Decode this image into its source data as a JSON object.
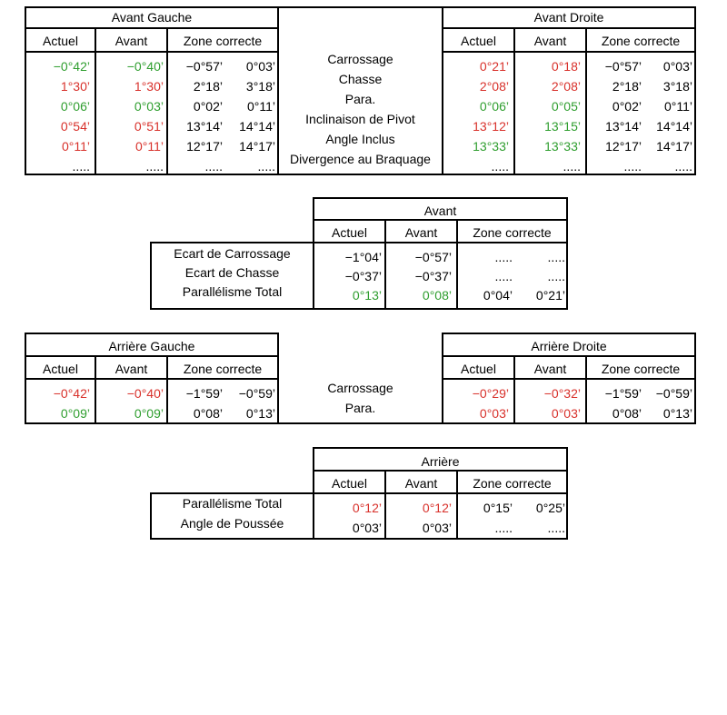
{
  "colors": {
    "out_of_range": "#d8312b",
    "in_range": "#2f9e2f"
  },
  "front": {
    "left_title": "Avant Gauche",
    "right_title": "Avant Droite",
    "col_headers": [
      "Actuel",
      "Avant",
      "Zone correcte"
    ],
    "labels": [
      "Carrossage",
      "Chasse",
      "Para.",
      "Inclinaison de Pivot",
      "Angle Inclus",
      "Divergence au Braquage"
    ],
    "left_rows": [
      {
        "actuel": "−0°42’",
        "avant": "−0°40’",
        "min": "−0°57’",
        "max": "0°03’",
        "c_act": "green",
        "c_av": "green"
      },
      {
        "actuel": "1°30’",
        "avant": "1°30’",
        "min": "2°18’",
        "max": "3°18’",
        "c_act": "red",
        "c_av": "red"
      },
      {
        "actuel": "0°06’",
        "avant": "0°03’",
        "min": "0°02’",
        "max": "0°11’",
        "c_act": "green",
        "c_av": "green"
      },
      {
        "actuel": "0°54’",
        "avant": "0°51’",
        "min": "13°14’",
        "max": "14°14’",
        "c_act": "red",
        "c_av": "red"
      },
      {
        "actuel": "0°11’",
        "avant": "0°11’",
        "min": "12°17’",
        "max": "14°17’",
        "c_act": "red",
        "c_av": "red"
      },
      {
        "actuel": ".....",
        "avant": ".....",
        "min": ".....",
        "max": ".....",
        "c_act": "blk",
        "c_av": "blk"
      }
    ],
    "right_rows": [
      {
        "actuel": "0°21’",
        "avant": "0°18’",
        "min": "−0°57’",
        "max": "0°03’",
        "c_act": "red",
        "c_av": "red"
      },
      {
        "actuel": "2°08’",
        "avant": "2°08’",
        "min": "2°18’",
        "max": "3°18’",
        "c_act": "red",
        "c_av": "red"
      },
      {
        "actuel": "0°06’",
        "avant": "0°05’",
        "min": "0°02’",
        "max": "0°11’",
        "c_act": "green",
        "c_av": "green"
      },
      {
        "actuel": "13°12’",
        "avant": "13°15’",
        "min": "13°14’",
        "max": "14°14’",
        "c_act": "red",
        "c_av": "green"
      },
      {
        "actuel": "13°33’",
        "avant": "13°33’",
        "min": "12°17’",
        "max": "14°17’",
        "c_act": "green",
        "c_av": "green"
      },
      {
        "actuel": ".....",
        "avant": ".....",
        "min": ".....",
        "max": ".....",
        "c_act": "blk",
        "c_av": "blk"
      }
    ]
  },
  "front_axle": {
    "title": "Avant",
    "col_headers": [
      "Actuel",
      "Avant",
      "Zone correcte"
    ],
    "labels": [
      "Ecart de Carrossage",
      "Ecart de Chasse",
      "Parallélisme Total"
    ],
    "rows": [
      {
        "actuel": "−1°04’",
        "avant": "−0°57’",
        "min": ".....",
        "max": ".....",
        "c_act": "blk",
        "c_av": "blk"
      },
      {
        "actuel": "−0°37’",
        "avant": "−0°37’",
        "min": ".....",
        "max": ".....",
        "c_act": "blk",
        "c_av": "blk"
      },
      {
        "actuel": "0°13’",
        "avant": "0°08’",
        "min": "0°04’",
        "max": "0°21’",
        "c_act": "green",
        "c_av": "green"
      }
    ]
  },
  "rear": {
    "left_title": "Arrière Gauche",
    "right_title": "Arrière Droite",
    "col_headers": [
      "Actuel",
      "Avant",
      "Zone correcte"
    ],
    "labels": [
      "Carrossage",
      "Para."
    ],
    "left_rows": [
      {
        "actuel": "−0°42’",
        "avant": "−0°40’",
        "min": "−1°59’",
        "max": "−0°59’",
        "c_act": "red",
        "c_av": "red"
      },
      {
        "actuel": "0°09’",
        "avant": "0°09’",
        "min": "0°08’",
        "max": "0°13’",
        "c_act": "green",
        "c_av": "green"
      }
    ],
    "right_rows": [
      {
        "actuel": "−0°29’",
        "avant": "−0°32’",
        "min": "−1°59’",
        "max": "−0°59’",
        "c_act": "red",
        "c_av": "red"
      },
      {
        "actuel": "0°03’",
        "avant": "0°03’",
        "min": "0°08’",
        "max": "0°13’",
        "c_act": "red",
        "c_av": "red"
      }
    ]
  },
  "rear_axle": {
    "title": "Arrière",
    "col_headers": [
      "Actuel",
      "Avant",
      "Zone correcte"
    ],
    "labels": [
      "Parallélisme Total",
      "Angle de Poussée"
    ],
    "rows": [
      {
        "actuel": "0°12’",
        "avant": "0°12’",
        "min": "0°15’",
        "max": "0°25’",
        "c_act": "red",
        "c_av": "red"
      },
      {
        "actuel": "0°03’",
        "avant": "0°03’",
        "min": ".....",
        "max": ".....",
        "c_act": "blk",
        "c_av": "blk"
      }
    ]
  }
}
